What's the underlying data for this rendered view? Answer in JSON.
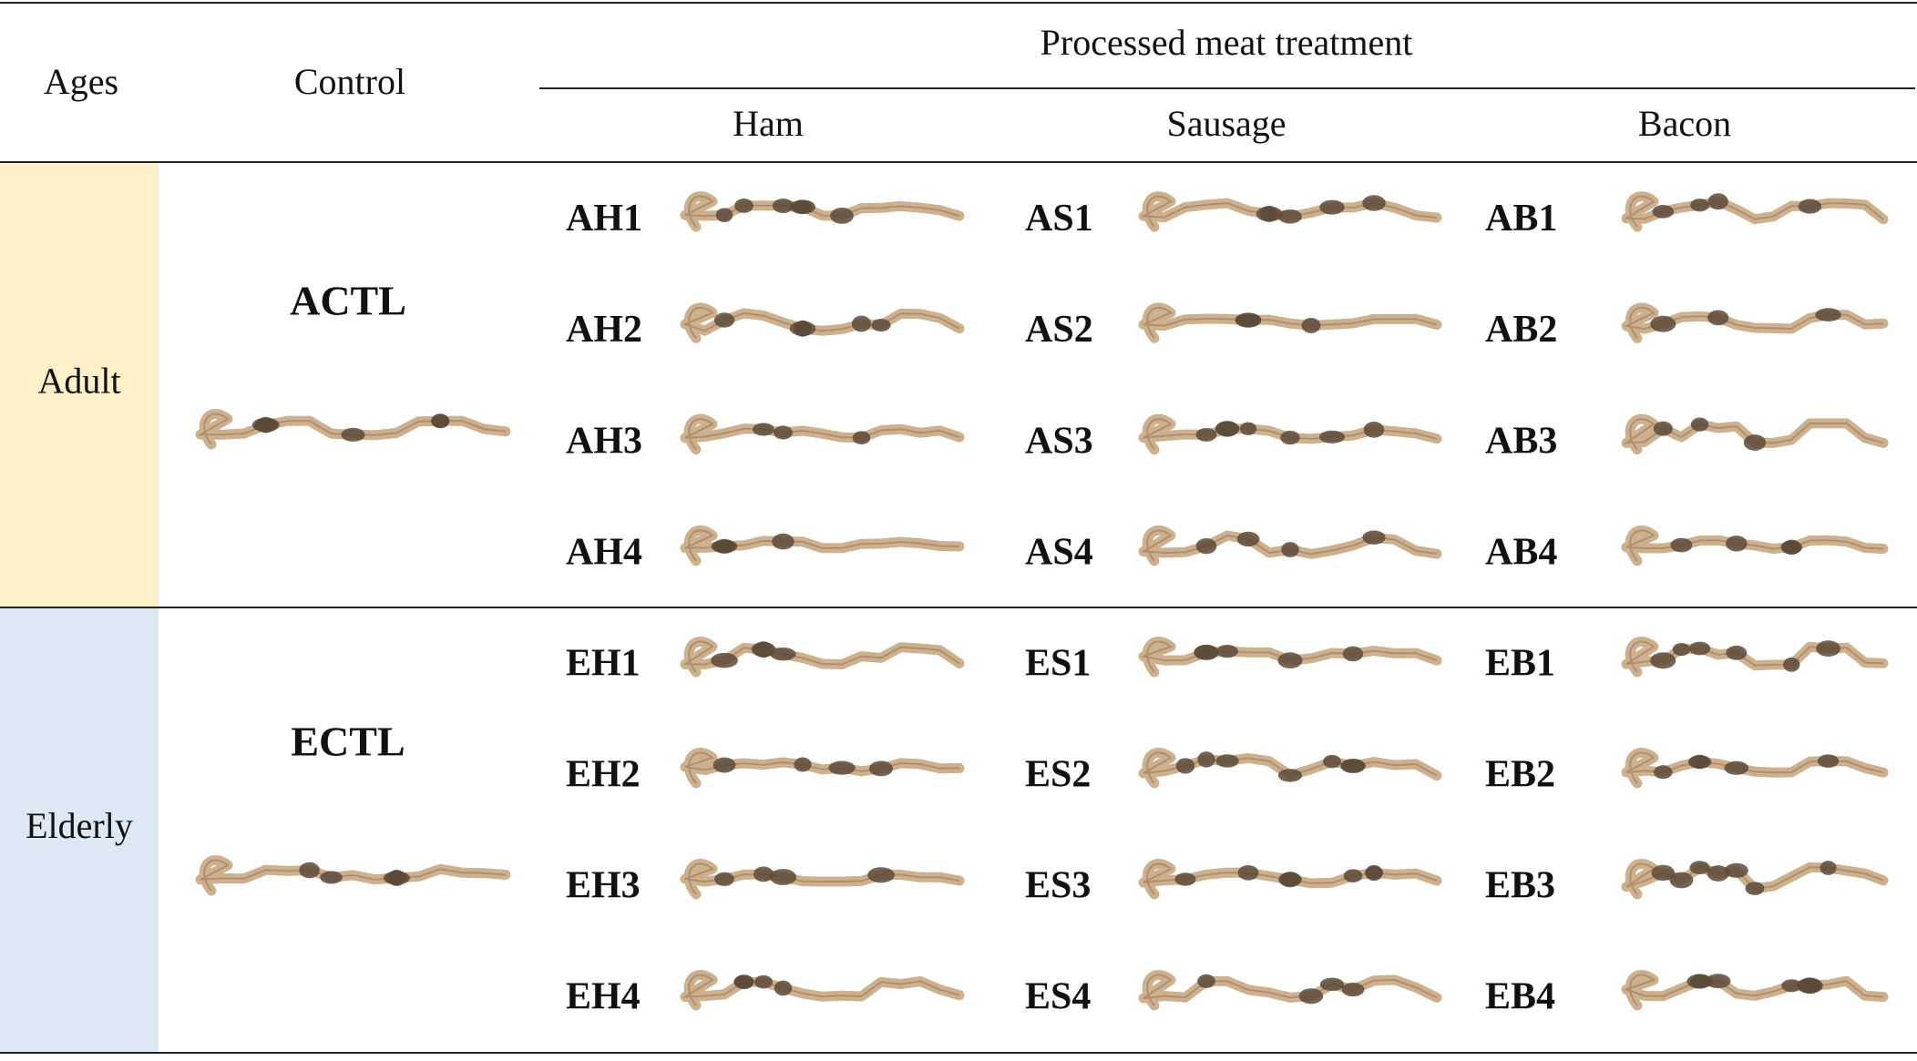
{
  "header": {
    "ages": "Ages",
    "control": "Control",
    "treatment": "Processed meat treatment",
    "columns": [
      "Ham",
      "Sausage",
      "Bacon"
    ]
  },
  "rows": [
    {
      "age": "Adult",
      "control": "ACTL",
      "groups": [
        [
          "AH1",
          "AH2",
          "AH3",
          "AH4"
        ],
        [
          "AS1",
          "AS2",
          "AS3",
          "AS4"
        ],
        [
          "AB1",
          "AB2",
          "AB3",
          "AB4"
        ]
      ]
    },
    {
      "age": "Elderly",
      "control": "ECTL",
      "groups": [
        [
          "EH1",
          "EH2",
          "EH3",
          "EH4"
        ],
        [
          "ES1",
          "ES2",
          "ES3",
          "ES4"
        ],
        [
          "EB1",
          "EB2",
          "EB3",
          "EB4"
        ]
      ]
    }
  ]
}
